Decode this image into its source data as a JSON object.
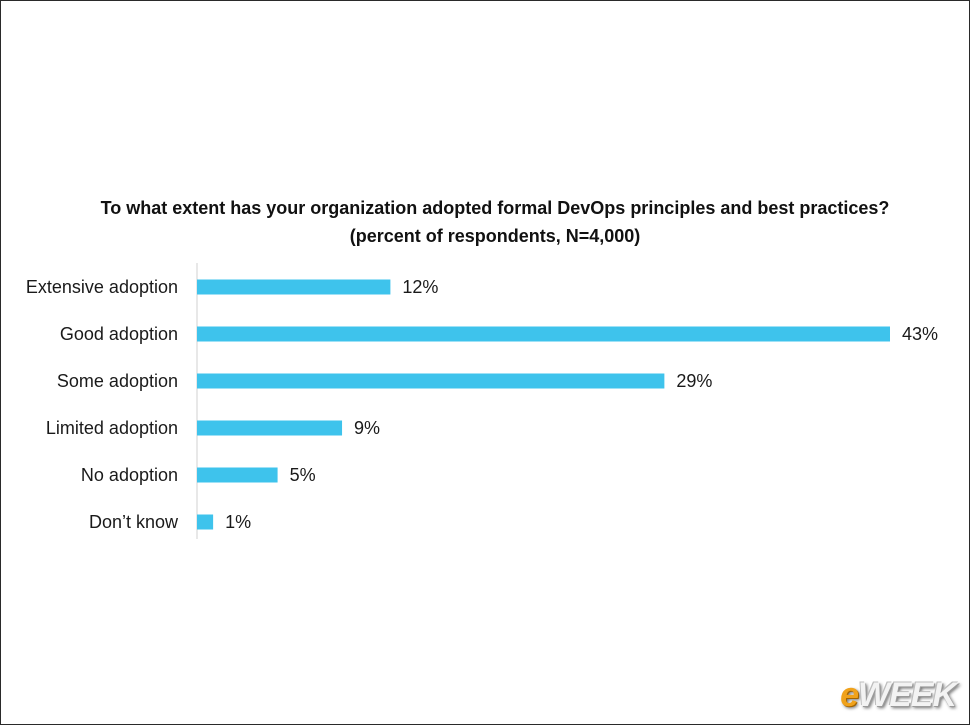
{
  "chart_data": {
    "type": "bar",
    "orientation": "horizontal",
    "title": "To what extent has your organization adopted formal DevOps principles and best practices?",
    "subtitle": "(percent of respondents, N=4,000)",
    "categories": [
      "Extensive adoption",
      "Good adoption",
      "Some adoption",
      "Limited adoption",
      "No adoption",
      "Don’t know"
    ],
    "values": [
      12,
      43,
      29,
      9,
      5,
      1
    ],
    "value_labels": [
      "12%",
      "43%",
      "29%",
      "9%",
      "5%",
      "1%"
    ],
    "xlim": [
      0,
      43
    ],
    "bar_color": "#3ec3ec",
    "grid": false,
    "legend": "none"
  },
  "logo": {
    "prefix": "e",
    "rest": "WEEK"
  }
}
